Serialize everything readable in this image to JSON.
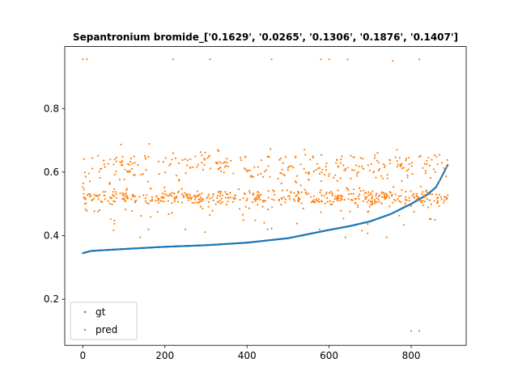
{
  "chart_data": {
    "type": "scatter",
    "title": "Sepantronium bromide_['0.1629', '0.0265', '0.1306', '0.1876', '0.1407']",
    "xlabel": "",
    "ylabel": "",
    "xlim": [
      -44,
      934
    ],
    "ylim": [
      0.055,
      0.995
    ],
    "x_ticks": [
      0,
      200,
      400,
      600,
      800
    ],
    "y_ticks": [
      0.2,
      0.4,
      0.6,
      0.8
    ],
    "grid": false,
    "legend": {
      "placement": "lower-left",
      "entries": [
        "gt",
        "pred"
      ]
    },
    "n_points": 890,
    "series": [
      {
        "name": "gt",
        "color": "#1f77b4",
        "description": "sorted ground-truth values, monotonically increasing",
        "x": [
          0,
          20,
          60,
          100,
          200,
          300,
          400,
          450,
          500,
          550,
          600,
          650,
          700,
          750,
          800,
          840,
          860,
          870,
          880,
          890
        ],
        "y": [
          0.345,
          0.352,
          0.355,
          0.358,
          0.365,
          0.37,
          0.378,
          0.385,
          0.392,
          0.405,
          0.418,
          0.43,
          0.445,
          0.468,
          0.5,
          0.53,
          0.552,
          0.575,
          0.6,
          0.625
        ]
      },
      {
        "name": "pred",
        "color": "#ff7f0e",
        "description": "predicted values, clustered in bands around ~0.52 and ~0.61 with outliers",
        "bands": [
          {
            "center": 0.52,
            "spread": 0.012,
            "count": 480
          },
          {
            "center": 0.61,
            "spread": 0.025,
            "count": 250
          },
          {
            "center": 0.47,
            "spread": 0.03,
            "count": 60
          },
          {
            "center": 0.64,
            "spread": 0.012,
            "count": 60
          }
        ],
        "outliers": [
          [
            0,
            0.955
          ],
          [
            10,
            0.955
          ],
          [
            220,
            0.955
          ],
          [
            310,
            0.955
          ],
          [
            460,
            0.955
          ],
          [
            580,
            0.955
          ],
          [
            600,
            0.955
          ],
          [
            645,
            0.955
          ],
          [
            755,
            0.95
          ],
          [
            820,
            0.955
          ],
          [
            800,
            0.1
          ],
          [
            820,
            0.1
          ],
          [
            640,
            0.395
          ],
          [
            140,
            0.395
          ],
          [
            740,
            0.395
          ],
          [
            450,
            0.42
          ],
          [
            250,
            0.42
          ],
          [
            160,
            0.42
          ]
        ]
      }
    ]
  }
}
